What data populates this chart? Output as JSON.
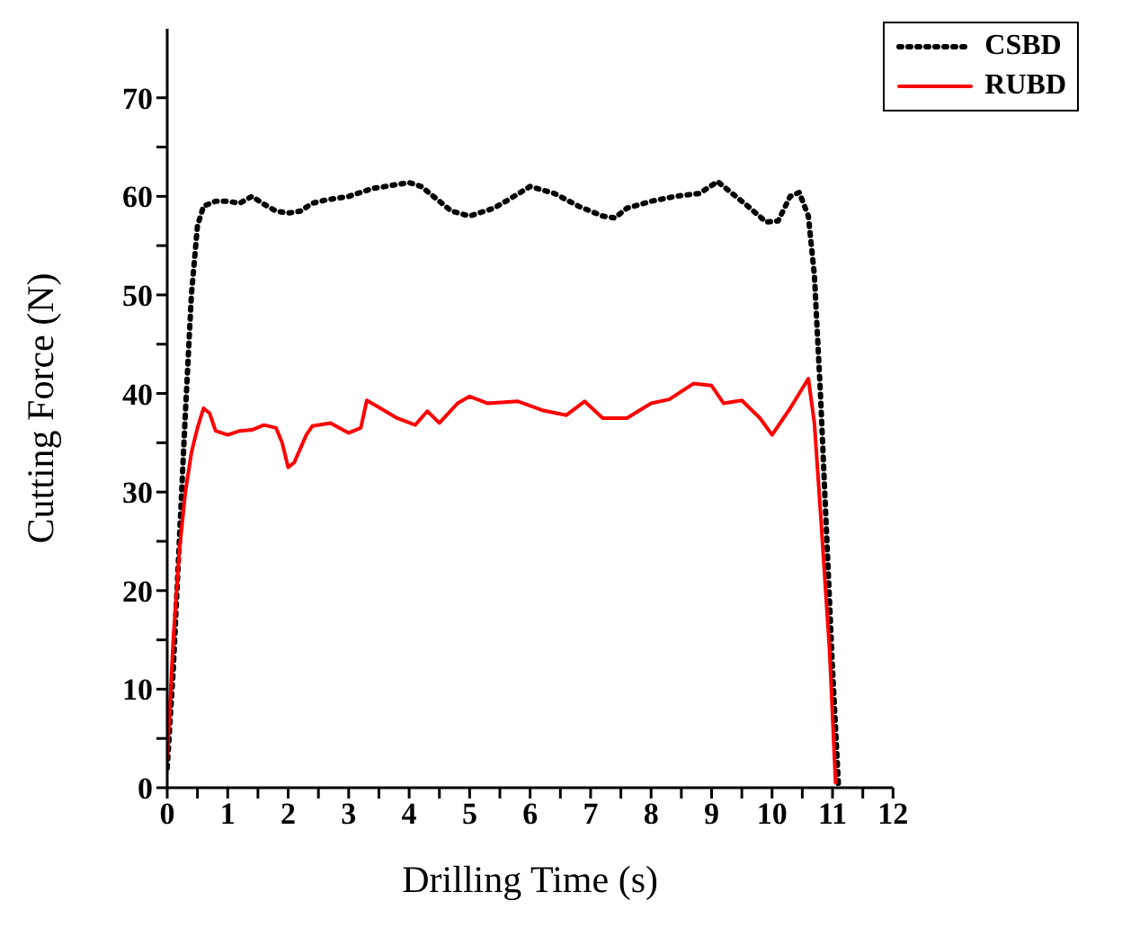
{
  "chart_data": {
    "type": "line",
    "xlabel": "Drilling Time (s)",
    "ylabel": "Cutting Force (N)",
    "xlim": [
      0,
      12
    ],
    "ylim": [
      0,
      77
    ],
    "xticks": [
      0,
      {
        "value": 0.5,
        "label": null
      },
      1,
      {
        "value": 1.5,
        "label": null
      },
      2,
      {
        "value": 2.5,
        "label": null
      },
      3,
      {
        "value": 3.5,
        "label": null
      },
      4,
      {
        "value": 4.5,
        "label": null
      },
      5,
      {
        "value": 5.5,
        "label": null
      },
      6,
      {
        "value": 6.5,
        "label": null
      },
      7,
      {
        "value": 7.5,
        "label": null
      },
      8,
      {
        "value": 8.5,
        "label": null
      },
      9,
      {
        "value": 9.5,
        "label": null
      },
      10,
      {
        "value": 10.5,
        "label": null
      },
      11,
      {
        "value": 11.5,
        "label": null
      },
      12
    ],
    "yticks": [
      0,
      {
        "value": 5,
        "label": null
      },
      10,
      {
        "value": 15,
        "label": null
      },
      20,
      {
        "value": 25,
        "label": null
      },
      30,
      {
        "value": 35,
        "label": null
      },
      40,
      {
        "value": 45,
        "label": null
      },
      50,
      {
        "value": 55,
        "label": null
      },
      60,
      {
        "value": 65,
        "label": null
      },
      70
    ],
    "grid": false,
    "legend": "top right",
    "marker": "none",
    "series": [
      {
        "name": "CSBD",
        "color": "#000000",
        "line_style": "dotted",
        "x": [
          0,
          0.1,
          0.2,
          0.3,
          0.4,
          0.5,
          0.6,
          0.8,
          1,
          1.2,
          1.4,
          1.6,
          1.8,
          2,
          2.2,
          2.4,
          2.6,
          3,
          3.4,
          3.6,
          4,
          4.2,
          4.4,
          4.7,
          5,
          5.4,
          5.6,
          6,
          6.4,
          6.8,
          7.2,
          7.4,
          7.6,
          8,
          8.4,
          8.8,
          9.1,
          9.3,
          9.6,
          9.9,
          10.1,
          10.3,
          10.45,
          10.6,
          10.7,
          10.8,
          10.9,
          11,
          11.1
        ],
        "values": [
          2,
          12,
          25,
          38,
          50,
          57,
          59,
          59.5,
          59.5,
          59.3,
          60,
          59.2,
          58.5,
          58.3,
          58.5,
          59.3,
          59.6,
          60,
          60.8,
          61,
          61.4,
          61,
          60,
          58.5,
          58,
          58.8,
          59.5,
          61,
          60.3,
          59,
          58,
          57.8,
          58.8,
          59.5,
          60,
          60.3,
          61.5,
          60.5,
          59,
          57.4,
          57.5,
          60,
          60.4,
          58,
          52,
          40,
          26,
          12,
          0
        ]
      },
      {
        "name": "RUBD",
        "color": "#ff0000",
        "line_style": "solid",
        "x": [
          0,
          0.1,
          0.2,
          0.3,
          0.4,
          0.5,
          0.6,
          0.7,
          0.8,
          1,
          1.2,
          1.4,
          1.6,
          1.8,
          1.9,
          2,
          2.1,
          2.3,
          2.4,
          2.7,
          3,
          3.2,
          3.3,
          3.5,
          3.8,
          4.1,
          4.3,
          4.5,
          4.8,
          5,
          5.3,
          5.8,
          6.2,
          6.6,
          6.9,
          7.2,
          7.6,
          8,
          8.3,
          8.7,
          9,
          9.2,
          9.5,
          9.8,
          10,
          10.3,
          10.5,
          10.6,
          10.7,
          10.8,
          10.95,
          11.05
        ],
        "values": [
          3,
          15,
          24,
          30,
          34,
          36.5,
          38.5,
          38,
          36.2,
          35.8,
          36.2,
          36.3,
          36.8,
          36.5,
          35,
          32.5,
          33,
          35.8,
          36.7,
          37,
          36,
          36.5,
          39.3,
          38.6,
          37.5,
          36.8,
          38.2,
          37,
          39,
          39.7,
          39,
          39.2,
          38.3,
          37.8,
          39.2,
          37.5,
          37.5,
          39,
          39.4,
          41,
          40.8,
          39,
          39.3,
          37.5,
          35.8,
          38.5,
          40.5,
          41.5,
          37,
          28,
          14,
          0.5
        ]
      }
    ]
  }
}
